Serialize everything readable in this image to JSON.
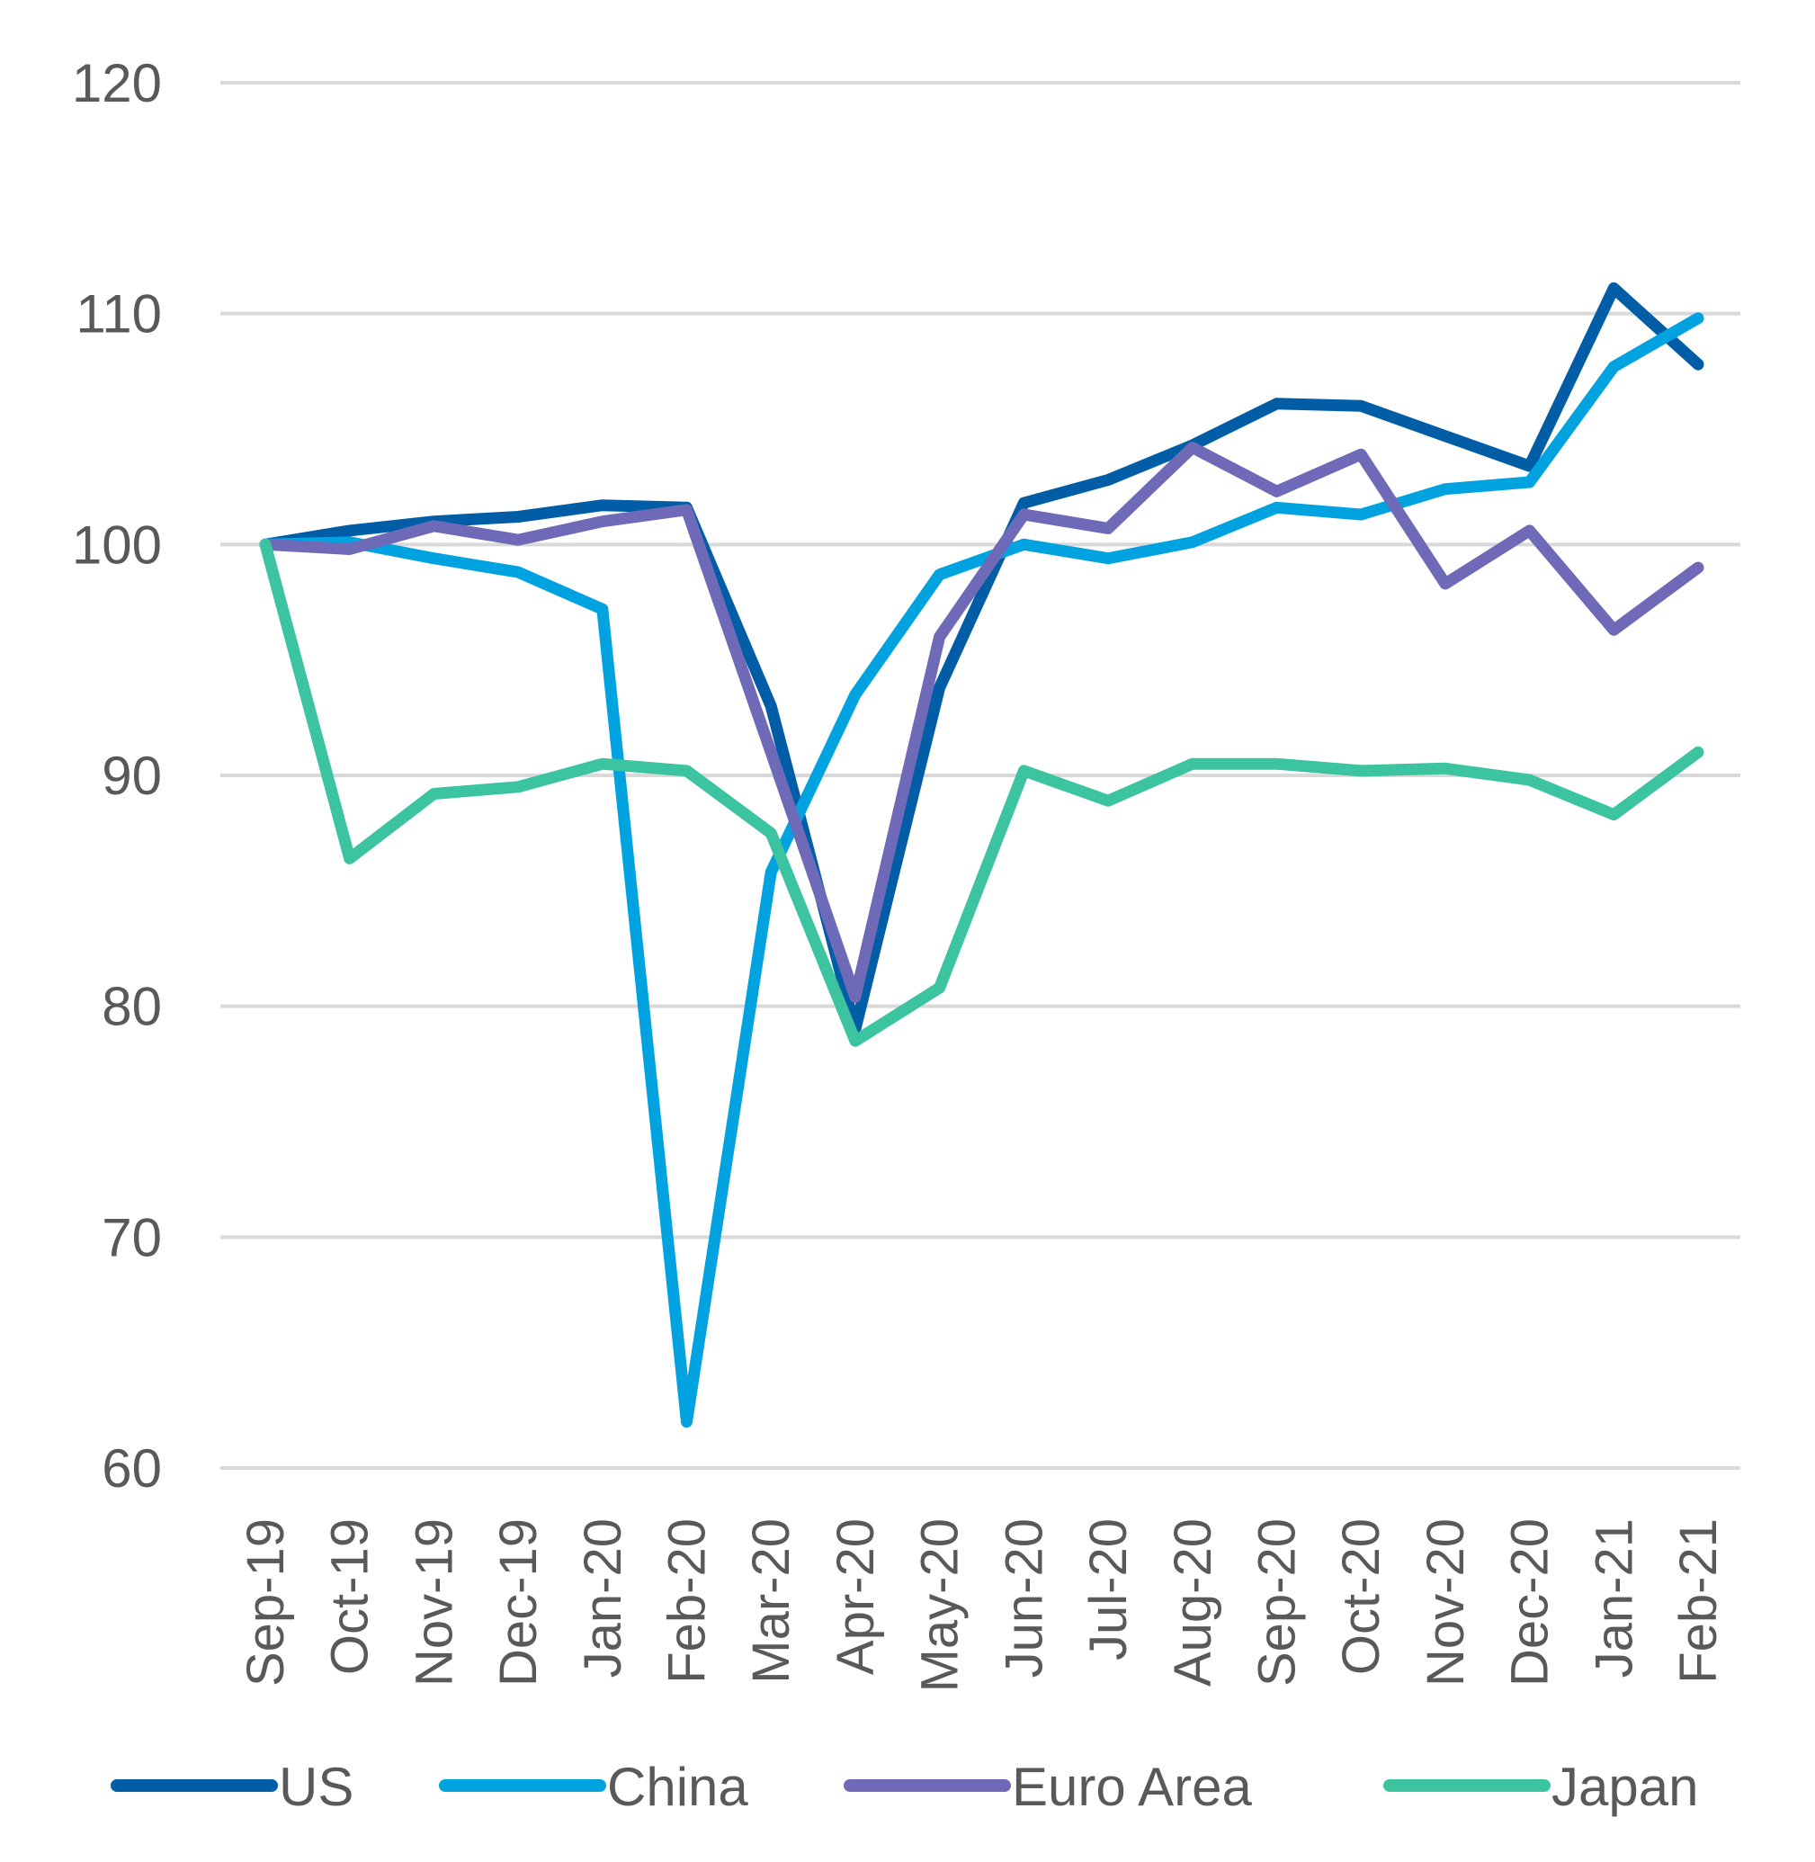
{
  "chart_data": {
    "type": "line",
    "title": "",
    "xlabel": "",
    "ylabel": "",
    "ylim": [
      60,
      120
    ],
    "yticks": [
      60,
      70,
      80,
      90,
      100,
      110,
      120
    ],
    "grid": true,
    "legend_position": "bottom",
    "categories": [
      "Sep-19",
      "Oct-19",
      "Nov-19",
      "Dec-19",
      "Jan-20",
      "Feb-20",
      "Mar-20",
      "Apr-20",
      "May-20",
      "Jun-20",
      "Jul-20",
      "Aug-20",
      "Sep-20",
      "Oct-20",
      "Nov-20",
      "Dec-20",
      "Jan-21",
      "Feb-21"
    ],
    "series": [
      {
        "name": "US",
        "color": "#005DA6",
        "values": [
          100,
          100.6,
          101,
          101.2,
          101.7,
          101.6,
          93,
          79,
          93.8,
          101.8,
          102.8,
          104.3,
          106.1,
          106,
          104.7,
          103.4,
          111.1,
          107.8
        ]
      },
      {
        "name": "China",
        "color": "#00A3E0",
        "values": [
          100,
          100.1,
          99.4,
          98.8,
          97.2,
          62,
          85.8,
          93.5,
          98.7,
          100,
          99.4,
          100.1,
          101.6,
          101.3,
          102.4,
          102.7,
          107.7,
          109.8
        ]
      },
      {
        "name": "Euro Area",
        "color": "#6E6AB8",
        "values": [
          100,
          99.8,
          100.8,
          100.2,
          101,
          101.5,
          91,
          80.4,
          96,
          101.3,
          100.7,
          104.2,
          102.3,
          103.9,
          98.3,
          100.6,
          96.3,
          99
        ]
      },
      {
        "name": "Japan",
        "color": "#3CC3A0",
        "values": [
          100,
          86.4,
          89.2,
          89.5,
          90.5,
          90.2,
          87.5,
          78.5,
          80.8,
          90.2,
          88.9,
          90.5,
          90.5,
          90.2,
          90.3,
          89.8,
          88.3,
          91
        ]
      }
    ]
  }
}
